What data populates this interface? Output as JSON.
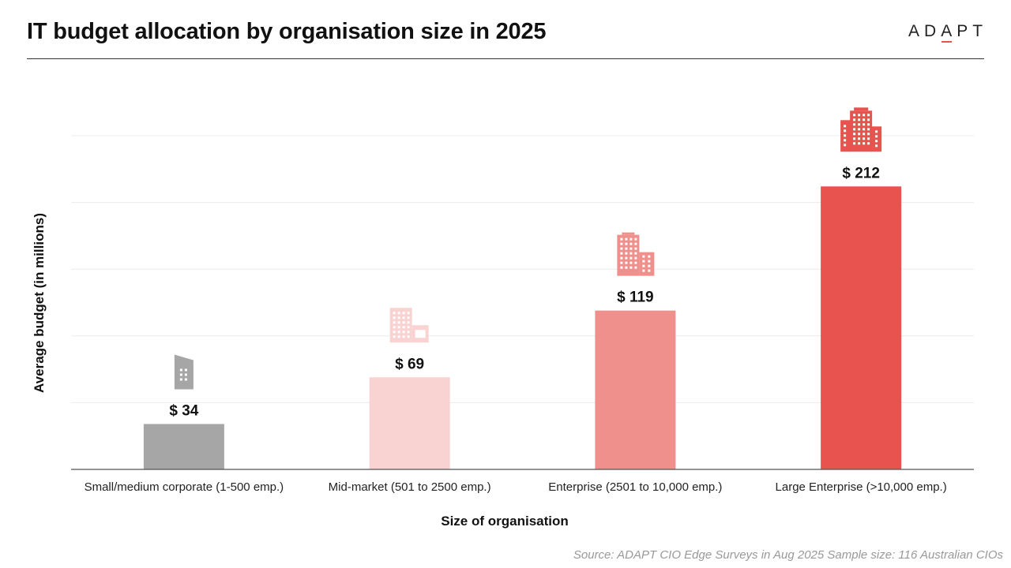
{
  "header": {
    "title": "IT budget allocation by organisation size in 2025",
    "logo_text": "ADAPT"
  },
  "footer": {
    "source": "Source: ADAPT CIO Edge Surveys in Aug 2025  Sample size: 116 Australian CIOs"
  },
  "chart_data": {
    "type": "bar",
    "title": "IT budget allocation by organisation size in 2025",
    "xlabel": "Size of organisation",
    "ylabel": "Average budget (in millions)",
    "ylim": [
      0,
      250
    ],
    "grid": true,
    "categories": [
      "Small/medium corporate (1-500 emp.)",
      "Mid-market (501 to 2500 emp.)",
      "Enterprise (2501 to 10,000 emp.)",
      "Large Enterprise (>10,000 emp.)"
    ],
    "values": [
      34,
      69,
      119,
      212
    ],
    "value_labels": [
      "$ 34",
      "$ 69",
      "$ 119",
      "$ 212"
    ],
    "colors": [
      "#a6a6a6",
      "#f8d3d2",
      "#ef908c",
      "#e8534f"
    ],
    "icons": [
      "small-building-icon",
      "mid-building-icon",
      "office-tower-icon",
      "large-office-complex-icon"
    ]
  }
}
